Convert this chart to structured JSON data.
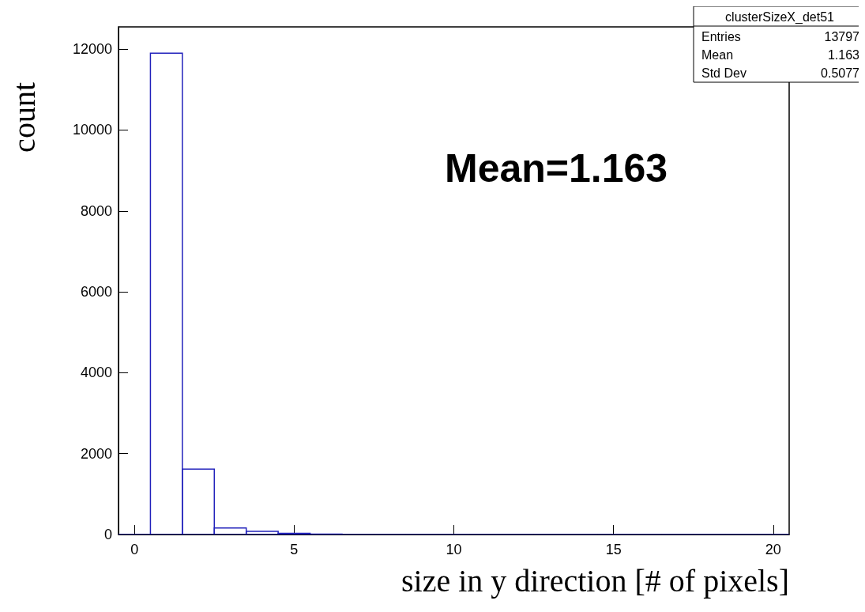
{
  "chart_data": {
    "type": "histogram",
    "xlabel": "size in y direction [# of pixels]",
    "ylabel": "count",
    "bins": [
      -0.5,
      0.5,
      1.5,
      2.5,
      3.5,
      4.5,
      5.5,
      6.5,
      7.5,
      8.5,
      9.5,
      10.5,
      11.5,
      12.5,
      13.5,
      14.5,
      15.5,
      16.5,
      17.5,
      18.5,
      19.5,
      20.5
    ],
    "values": [
      0,
      11900,
      1620,
      160,
      80,
      30,
      10,
      0,
      0,
      0,
      0,
      0,
      0,
      0,
      0,
      0,
      0,
      0,
      0,
      0,
      0
    ],
    "color": "#2222bb",
    "xlim": [
      -0.5,
      20.5
    ],
    "xticks": [
      0,
      5,
      10,
      15,
      20
    ],
    "ylim": [
      0,
      12550
    ],
    "yticks": [
      0,
      2000,
      4000,
      6000,
      8000,
      10000,
      12000
    ],
    "grid": false,
    "annotations": [
      "clusterSizeX_det51",
      "Entries 13797",
      "Mean 1.163",
      "Std Dev 0.5077",
      "Mean=1.163"
    ]
  }
}
